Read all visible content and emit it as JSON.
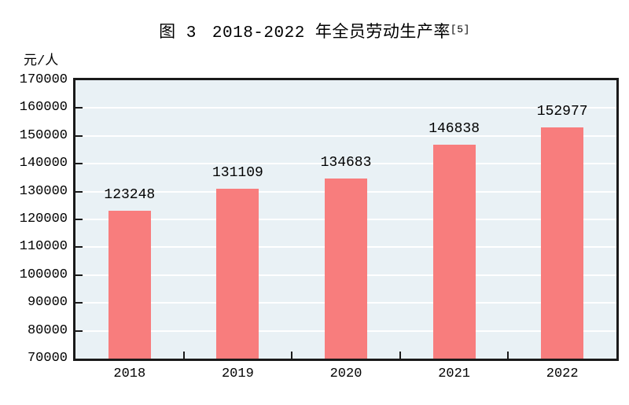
{
  "title": {
    "figure_label": "图 3",
    "text": "2018-2022 年全员劳动生产率",
    "superscript": "[5]"
  },
  "y_axis_unit": "元/人",
  "colors": {
    "bar": "#f87d7d",
    "plot_background": "#e9f1f5",
    "gridline": "#ffffff",
    "axis": "#1a1a1a",
    "text": "#000000"
  },
  "chart_data": {
    "type": "bar",
    "title": "图 3 2018-2022 年全员劳动生产率[5]",
    "categories": [
      "2018",
      "2019",
      "2020",
      "2021",
      "2022"
    ],
    "values": [
      123248,
      131109,
      134683,
      146838,
      152977
    ],
    "data_labels": [
      "123248",
      "131109",
      "134683",
      "146838",
      "152977"
    ],
    "xlabel": "",
    "ylabel": "元/人",
    "ylim": [
      70000,
      170000
    ],
    "ytick_step": 10000,
    "ytick_labels": [
      "70000",
      "80000",
      "90000",
      "100000",
      "110000",
      "120000",
      "130000",
      "140000",
      "150000",
      "160000",
      "170000"
    ],
    "grid": true,
    "legend": false
  }
}
